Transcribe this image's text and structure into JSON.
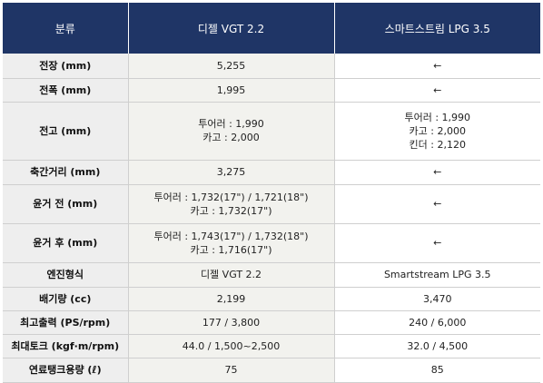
{
  "header": {
    "category": "분류",
    "diesel": "디젤 VGT 2.2",
    "lpg": "스마트스트림 LPG 3.5"
  },
  "rows": [
    {
      "label": "전장 (mm)",
      "diesel": [
        "5,255"
      ],
      "lpg": [
        "←"
      ]
    },
    {
      "label": "전폭 (mm)",
      "diesel": [
        "1,995"
      ],
      "lpg": [
        "←"
      ]
    },
    {
      "label": "전고 (mm)",
      "diesel": [
        "투어러 : 1,990",
        "카고 : 2,000"
      ],
      "lpg": [
        "투어러 : 1,990",
        "카고 : 2,000",
        "킨더 : 2,120"
      ]
    },
    {
      "label": "축간거리 (mm)",
      "diesel": [
        "3,275"
      ],
      "lpg": [
        "←"
      ]
    },
    {
      "label": "윤거 전 (mm)",
      "diesel": [
        "투어러 : 1,732(17\") / 1,721(18\")",
        "카고 : 1,732(17\")"
      ],
      "lpg": [
        "←"
      ]
    },
    {
      "label": "윤거 후 (mm)",
      "diesel": [
        "투어러 : 1,743(17\") / 1,732(18\")",
        "카고 : 1,716(17\")"
      ],
      "lpg": [
        "←"
      ]
    },
    {
      "label": "엔진형식",
      "diesel": [
        "디젤 VGT 2.2"
      ],
      "lpg": [
        "Smartstream LPG 3.5"
      ]
    },
    {
      "label": "배기량 (cc)",
      "diesel": [
        "2,199"
      ],
      "lpg": [
        "3,470"
      ]
    },
    {
      "label": "최고출력 (PS/rpm)",
      "diesel": [
        "177 / 3,800"
      ],
      "lpg": [
        "240 / 6,000"
      ]
    },
    {
      "label": "최대토크 (kgf·m/rpm)",
      "diesel": [
        "44.0 / 1,500~2,500"
      ],
      "lpg": [
        "32.0 / 4,500"
      ]
    },
    {
      "label": "연료탱크용량 (ℓ)",
      "diesel": [
        "75"
      ],
      "lpg": [
        "85"
      ]
    }
  ]
}
